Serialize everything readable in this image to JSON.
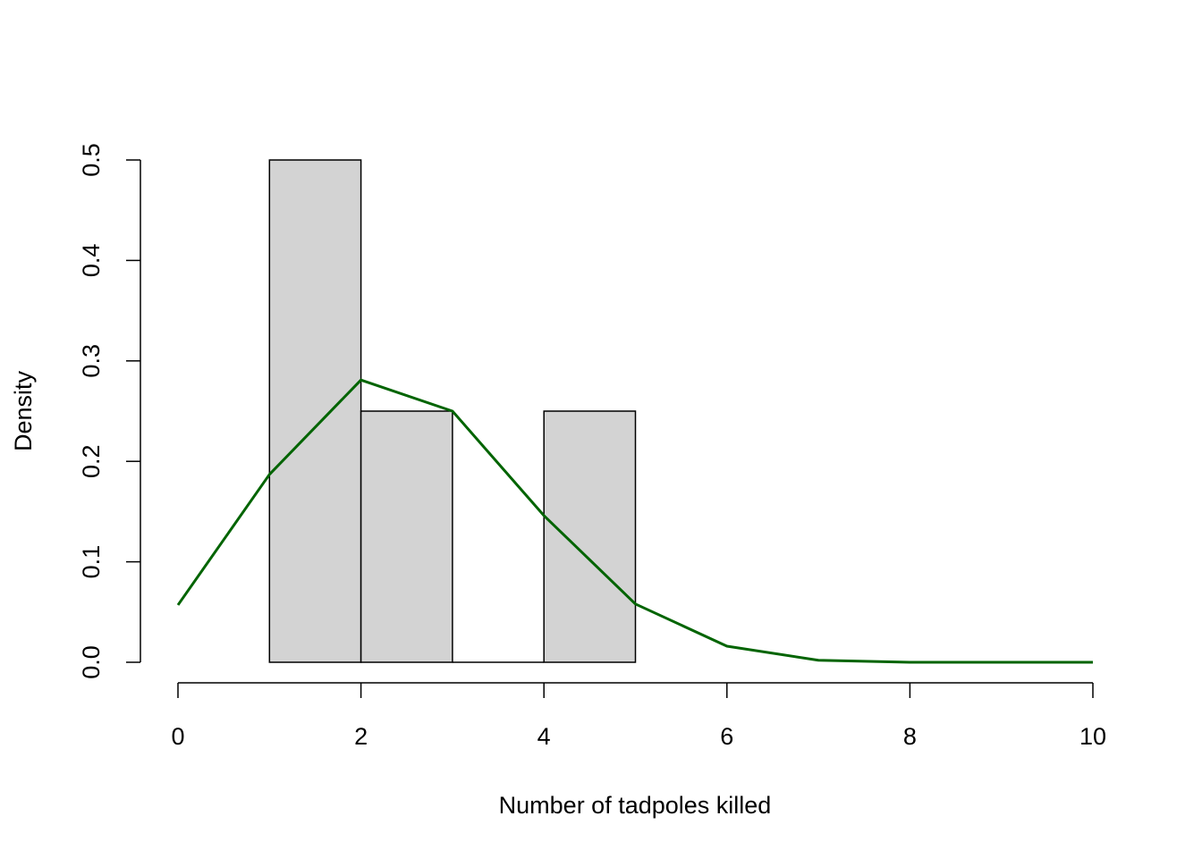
{
  "chart_data": {
    "type": "bar",
    "subtype": "histogram-with-line",
    "xlabel": "Number of tadpoles killed",
    "ylabel": "Density",
    "xlim": [
      0,
      10
    ],
    "ylim": [
      0,
      0.5
    ],
    "x_ticks": [
      "0",
      "2",
      "4",
      "6",
      "8",
      "10"
    ],
    "y_ticks": [
      "0.0",
      "0.1",
      "0.2",
      "0.3",
      "0.4",
      "0.5"
    ],
    "bins": [
      {
        "from": 1,
        "to": 2,
        "density": 0.5
      },
      {
        "from": 2,
        "to": 3,
        "density": 0.25
      },
      {
        "from": 3,
        "to": 4,
        "density": 0.0
      },
      {
        "from": 4,
        "to": 5,
        "density": 0.25
      }
    ],
    "bar_fill": "#d3d3d3",
    "bar_stroke": "#000000",
    "series": [
      {
        "line_color": "#006400",
        "x": [
          0,
          1,
          2,
          3,
          4,
          5,
          6,
          7,
          8,
          9,
          10
        ],
        "values": [
          0.057,
          0.187,
          0.281,
          0.25,
          0.146,
          0.058,
          0.016,
          0.002,
          0.0,
          0.0,
          0.0
        ]
      }
    ],
    "grid": false
  }
}
